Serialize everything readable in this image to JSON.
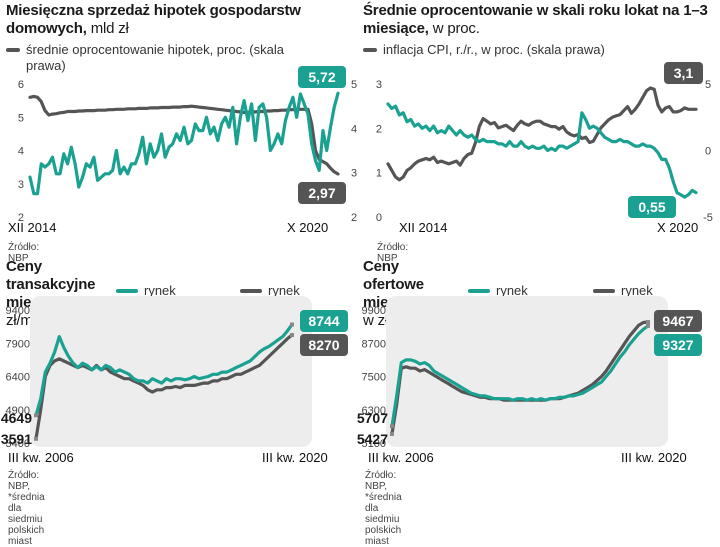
{
  "colors": {
    "green": "#1aa192",
    "gray": "#555555",
    "plot_bg": "#ededed"
  },
  "panels": [
    {
      "title": "Miesięczna sprzedaż hipotek gospodarstw domowych,",
      "unit": "mld zł",
      "legend": "średnie oprocentowanie hipotek, proc. (skala prawa)",
      "source": "Źródło: NBP"
    },
    {
      "title": "Średnie oprocentowanie w skali roku lokat na 1–3 miesiące,",
      "unit": "w proc.",
      "legend": "inflacja CPI, r./r., w proc. (skala prawa)",
      "source": "Źródło: NBP"
    },
    {
      "title": "Ceny transakcyjne mieszkań,",
      "unit": "w zł/mkw.*",
      "legend_primary": "rynek pierwotny",
      "legend_secondary": "rynek wtórny",
      "source": "Źródło: NBP, *średnia dla siedmiu polskich miast"
    },
    {
      "title": "Ceny ofertowe mieszkań,",
      "unit": "w zł/mkw.*",
      "legend_primary": "rynek pierwotny",
      "legend_secondary": "rynek wtórny",
      "source": "Źródło: NBP, *średnia dla siedmiu polskich miast"
    }
  ],
  "chart_data": [
    {
      "type": "line",
      "title": "Miesięczna sprzedaż hipotek gospodarstw domowych, mld zł",
      "x_start_label": "XII 2014",
      "x_end_label": "X 2020",
      "ylim_left": [
        2,
        6
      ],
      "yticks_left": [
        2,
        3,
        4,
        5,
        6
      ],
      "ylim_right": [
        2,
        5
      ],
      "yticks_right": [
        2,
        3,
        4,
        5
      ],
      "series": [
        {
          "name": "sprzedaż hipotek, mld zł",
          "axis": "left",
          "color": "green",
          "values": [
            3.2,
            2.7,
            2.7,
            3.6,
            3.5,
            3.6,
            3.8,
            3.3,
            3.3,
            3.9,
            3.6,
            4.1,
            3.6,
            2.9,
            3.2,
            3.6,
            3.5,
            3.8,
            3.1,
            3.2,
            3.3,
            3.3,
            3.4,
            4.0,
            3.3,
            3.5,
            3.3,
            3.6,
            3.6,
            3.9,
            4.4,
            3.6,
            4.2,
            3.8,
            4.0,
            4.5,
            3.8,
            4.1,
            4.2,
            4.5,
            4.3,
            4.7,
            4.2,
            4.3,
            4.8,
            4.6,
            4.6,
            5.0,
            4.5,
            4.7,
            4.3,
            4.8,
            5.0,
            4.7,
            5.3,
            4.2,
            5.0,
            5.5,
            4.9,
            5.4,
            4.3,
            5.3,
            5.4,
            5.0,
            4.0,
            4.2,
            4.5,
            4.2,
            4.9,
            5.3,
            5.6,
            5.0,
            5.7,
            5.4,
            5.1,
            4.2,
            3.7,
            3.4,
            4.6,
            4.0,
            4.7,
            5.3,
            5.72
          ]
        },
        {
          "name": "średnie oprocentowanie hipotek, proc.",
          "axis": "right",
          "color": "gray",
          "values": [
            4.7,
            4.72,
            4.7,
            4.6,
            4.4,
            4.3,
            4.32,
            4.33,
            4.35,
            4.36,
            4.38,
            4.38,
            4.38,
            4.39,
            4.39,
            4.4,
            4.4,
            4.4,
            4.41,
            4.41,
            4.41,
            4.42,
            4.42,
            4.43,
            4.43,
            4.43,
            4.44,
            4.44,
            4.44,
            4.45,
            4.45,
            4.45,
            4.46,
            4.46,
            4.46,
            4.47,
            4.47,
            4.47,
            4.48,
            4.48,
            4.48,
            4.49,
            4.49,
            4.5,
            4.49,
            4.48,
            4.47,
            4.46,
            4.45,
            4.44,
            4.43,
            4.42,
            4.41,
            4.4,
            4.39,
            4.38,
            4.37,
            4.36,
            4.36,
            4.37,
            4.37,
            4.38,
            4.38,
            4.39,
            4.39,
            4.4,
            4.4,
            4.41,
            4.41,
            4.42,
            4.42,
            4.42,
            4.43,
            4.43,
            4.43,
            4.1,
            3.5,
            3.3,
            3.25,
            3.2,
            3.1,
            3.02,
            2.97
          ]
        }
      ],
      "end_labels": [
        {
          "text": "5,72",
          "series": 0,
          "style": "badge-green"
        },
        {
          "text": "2,97",
          "series": 1,
          "style": "badge-gray"
        }
      ]
    },
    {
      "type": "line",
      "title": "Średnie oprocentowanie w skali roku lokat na 1–3 miesiące, w proc.",
      "x_start_label": "XII 2014",
      "x_end_label": "X 2020",
      "ylim_left": [
        0,
        3
      ],
      "yticks_left": [
        0,
        1,
        2,
        3
      ],
      "ylim_right": [
        -5,
        5
      ],
      "yticks_right": [
        -5,
        0,
        5
      ],
      "series": [
        {
          "name": "średnie oprocentowanie lokat 1–3 mies., proc.",
          "axis": "left",
          "color": "green",
          "values": [
            2.55,
            2.45,
            2.5,
            2.3,
            2.35,
            2.15,
            2.2,
            2.05,
            2.1,
            2.0,
            2.05,
            1.95,
            2.05,
            1.9,
            1.95,
            1.9,
            2.05,
            1.95,
            1.85,
            1.95,
            1.85,
            1.8,
            1.85,
            1.75,
            1.7,
            1.75,
            1.7,
            1.7,
            1.7,
            1.65,
            1.65,
            1.6,
            1.7,
            1.6,
            1.6,
            1.7,
            1.6,
            1.55,
            1.6,
            1.55,
            1.55,
            1.6,
            1.5,
            1.55,
            1.5,
            1.6,
            1.6,
            1.55,
            1.6,
            1.65,
            1.7,
            2.35,
            2.2,
            2.0,
            2.05,
            2.0,
            1.9,
            1.8,
            1.75,
            1.7,
            1.7,
            1.75,
            1.7,
            1.7,
            1.65,
            1.6,
            1.6,
            1.65,
            1.6,
            1.6,
            1.55,
            1.45,
            1.3,
            1.3,
            1.1,
            0.8,
            0.55,
            0.5,
            0.45,
            0.5,
            0.6,
            0.55
          ]
        },
        {
          "name": "inflacja CPI, r./r., w proc.",
          "axis": "right",
          "color": "gray",
          "values": [
            -1.0,
            -1.5,
            -2.0,
            -2.2,
            -2.0,
            -1.5,
            -1.3,
            -1.0,
            -0.8,
            -0.7,
            -0.6,
            -0.7,
            -0.5,
            -0.9,
            -0.8,
            -0.9,
            -1.0,
            -0.9,
            -0.8,
            -1.1,
            -0.6,
            -0.3,
            -0.2,
            0.6,
            1.8,
            2.4,
            2.2,
            2.0,
            2.1,
            1.7,
            1.8,
            1.9,
            1.7,
            1.5,
            1.9,
            2.2,
            2.0,
            1.9,
            2.1,
            2.2,
            2.2,
            2.0,
            1.9,
            1.8,
            1.8,
            1.6,
            1.8,
            1.4,
            1.2,
            1.1,
            1.2,
            0.9,
            1.0,
            0.6,
            0.7,
            1.2,
            1.7,
            2.0,
            2.3,
            2.5,
            2.6,
            2.7,
            3.0,
            3.3,
            2.8,
            3.1,
            3.5,
            4.0,
            4.5,
            4.7,
            4.6,
            3.4,
            2.9,
            3.2,
            3.3,
            2.9,
            2.9,
            3.0,
            3.2,
            3.1,
            3.1,
            3.1
          ]
        }
      ],
      "end_labels": [
        {
          "text": "3,1",
          "series": 1,
          "style": "badge-gray"
        },
        {
          "text": "0,55",
          "series": 0,
          "style": "badge-green"
        }
      ]
    },
    {
      "type": "line",
      "title": "Ceny transakcyjne mieszkań, w zł/mkw.*",
      "x_start_label": "III kw. 2006",
      "x_end_label": "III kw. 2020",
      "ylim": [
        3400,
        9400
      ],
      "yticks": [
        3400,
        4900,
        6400,
        7900,
        9400
      ],
      "series": [
        {
          "name": "rynek pierwotny",
          "color": "green",
          "values": [
            4649,
            5400,
            6600,
            7000,
            7500,
            8200,
            7700,
            7300,
            7000,
            6800,
            7000,
            6900,
            6700,
            6850,
            6700,
            6900,
            6800,
            6600,
            6700,
            6600,
            6500,
            6300,
            6200,
            6200,
            6100,
            6300,
            6200,
            6100,
            6300,
            6200,
            6300,
            6300,
            6250,
            6300,
            6400,
            6300,
            6350,
            6400,
            6500,
            6500,
            6600,
            6600,
            6700,
            6800,
            6900,
            7000,
            7100,
            7300,
            7500,
            7650,
            7750,
            7900,
            8050,
            8200,
            8450,
            8744
          ]
        },
        {
          "name": "rynek wtórny",
          "color": "gray",
          "values": [
            3591,
            4900,
            6400,
            6900,
            7100,
            7200,
            7100,
            7000,
            6900,
            6800,
            6900,
            6800,
            6700,
            6900,
            6700,
            6800,
            6600,
            6500,
            6400,
            6300,
            6300,
            6200,
            6100,
            6000,
            5800,
            5700,
            5800,
            5800,
            5900,
            5900,
            5950,
            5900,
            6000,
            6000,
            6000,
            6050,
            6100,
            6100,
            6200,
            6200,
            6300,
            6300,
            6400,
            6500,
            6500,
            6600,
            6700,
            6800,
            6900,
            7100,
            7300,
            7500,
            7700,
            7900,
            8100,
            8270
          ]
        }
      ],
      "end_labels": [
        {
          "text": "8744",
          "series": 0,
          "style": "badge-green"
        },
        {
          "text": "8270",
          "series": 1,
          "style": "badge-gray"
        }
      ],
      "start_labels": [
        {
          "text": "4649",
          "series": 0
        },
        {
          "text": "3591",
          "series": 1
        }
      ]
    },
    {
      "type": "line",
      "title": "Ceny ofertowe mieszkań, w zł/mkw.*",
      "x_start_label": "III kw. 2006",
      "x_end_label": "III kw. 2020",
      "ylim": [
        5100,
        9900
      ],
      "yticks": [
        5100,
        6300,
        7500,
        8700,
        9900
      ],
      "series": [
        {
          "name": "rynek pierwotny",
          "color": "green",
          "values": [
            5707,
            6800,
            8000,
            8100,
            8100,
            8050,
            7950,
            8000,
            7900,
            7700,
            7600,
            7500,
            7400,
            7300,
            7200,
            7100,
            7000,
            6900,
            6850,
            6800,
            6800,
            6750,
            6700,
            6700,
            6700,
            6700,
            6650,
            6700,
            6700,
            6650,
            6700,
            6650,
            6700,
            6650,
            6700,
            6700,
            6750,
            6750,
            6800,
            6800,
            6850,
            6900,
            7000,
            7100,
            7200,
            7300,
            7500,
            7700,
            7950,
            8200,
            8400,
            8650,
            8850,
            9050,
            9200,
            9327
          ]
        },
        {
          "name": "rynek wtórny",
          "color": "gray",
          "values": [
            5427,
            6500,
            7800,
            7850,
            7800,
            7800,
            7700,
            7750,
            7650,
            7550,
            7450,
            7350,
            7250,
            7150,
            7050,
            6950,
            6900,
            6850,
            6800,
            6750,
            6750,
            6700,
            6700,
            6700,
            6650,
            6650,
            6650,
            6650,
            6650,
            6650,
            6650,
            6650,
            6650,
            6650,
            6700,
            6700,
            6700,
            6750,
            6800,
            6850,
            6900,
            7000,
            7100,
            7200,
            7350,
            7500,
            7700,
            7950,
            8200,
            8450,
            8700,
            8950,
            9150,
            9350,
            9450,
            9467
          ]
        }
      ],
      "end_labels": [
        {
          "text": "9467",
          "series": 1,
          "style": "badge-gray"
        },
        {
          "text": "9327",
          "series": 0,
          "style": "badge-green"
        }
      ],
      "start_labels": [
        {
          "text": "5707",
          "series": 0
        },
        {
          "text": "5427",
          "series": 1
        }
      ]
    }
  ]
}
